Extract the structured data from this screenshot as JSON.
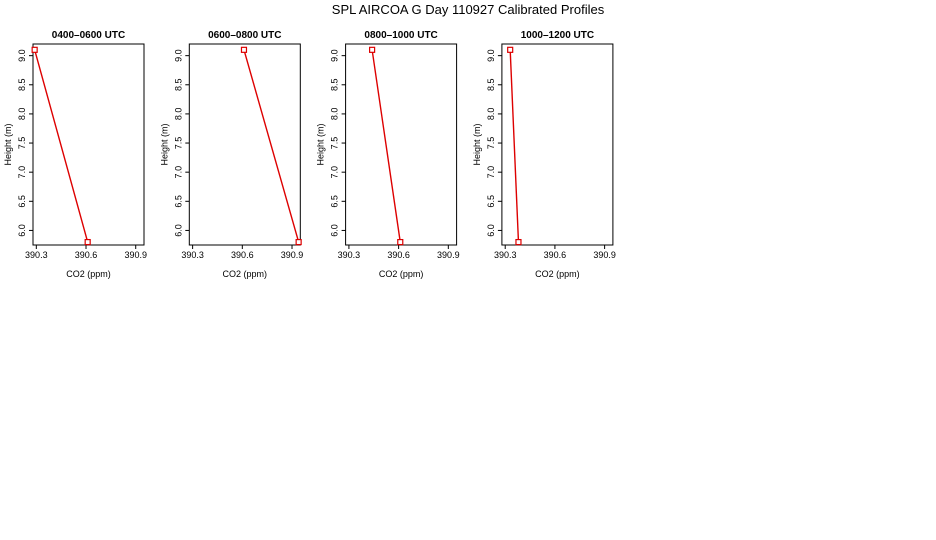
{
  "figure": {
    "title": "SPL AIRCOA G  Day 110927  Calibrated Profiles"
  },
  "chart_data": [
    {
      "type": "line",
      "title": "0400–0600 UTC",
      "xlabel": "CO2 (ppm)",
      "ylabel": "Height (m)",
      "xlim": [
        390.28,
        390.95
      ],
      "ylim": [
        5.75,
        9.2
      ],
      "xticks": [
        "390.3",
        "390.6",
        "390.9"
      ],
      "yticks": [
        "6.0",
        "6.5",
        "7.0",
        "7.5",
        "8.0",
        "8.5",
        "9.0"
      ],
      "color": "#dd0000",
      "series": [
        {
          "x": [
            390.29,
            390.61
          ],
          "y": [
            9.1,
            5.8
          ]
        }
      ]
    },
    {
      "type": "line",
      "title": "0600–0800 UTC",
      "xlabel": "CO2 (ppm)",
      "ylabel": "Height (m)",
      "xlim": [
        390.28,
        390.95
      ],
      "ylim": [
        5.75,
        9.2
      ],
      "xticks": [
        "390.3",
        "390.6",
        "390.9"
      ],
      "yticks": [
        "6.0",
        "6.5",
        "7.0",
        "7.5",
        "8.0",
        "8.5",
        "9.0"
      ],
      "color": "#dd0000",
      "series": [
        {
          "x": [
            390.61,
            390.94
          ],
          "y": [
            9.1,
            5.8
          ]
        }
      ]
    },
    {
      "type": "line",
      "title": "0800–1000 UTC",
      "xlabel": "CO2 (ppm)",
      "ylabel": "Height (m)",
      "xlim": [
        390.28,
        390.95
      ],
      "ylim": [
        5.75,
        9.2
      ],
      "xticks": [
        "390.3",
        "390.6",
        "390.9"
      ],
      "yticks": [
        "6.0",
        "6.5",
        "7.0",
        "7.5",
        "8.0",
        "8.5",
        "9.0"
      ],
      "color": "#dd0000",
      "series": [
        {
          "x": [
            390.44,
            390.61
          ],
          "y": [
            9.1,
            5.8
          ]
        }
      ]
    },
    {
      "type": "line",
      "title": "1000–1200 UTC",
      "xlabel": "CO2 (ppm)",
      "ylabel": "Height (m)",
      "xlim": [
        390.28,
        390.95
      ],
      "ylim": [
        5.75,
        9.2
      ],
      "xticks": [
        "390.3",
        "390.6",
        "390.9"
      ],
      "yticks": [
        "6.0",
        "6.5",
        "7.0",
        "7.5",
        "8.0",
        "8.5",
        "9.0"
      ],
      "color": "#dd0000",
      "series": [
        {
          "x": [
            390.33,
            390.38
          ],
          "y": [
            9.1,
            5.8
          ]
        }
      ]
    }
  ]
}
